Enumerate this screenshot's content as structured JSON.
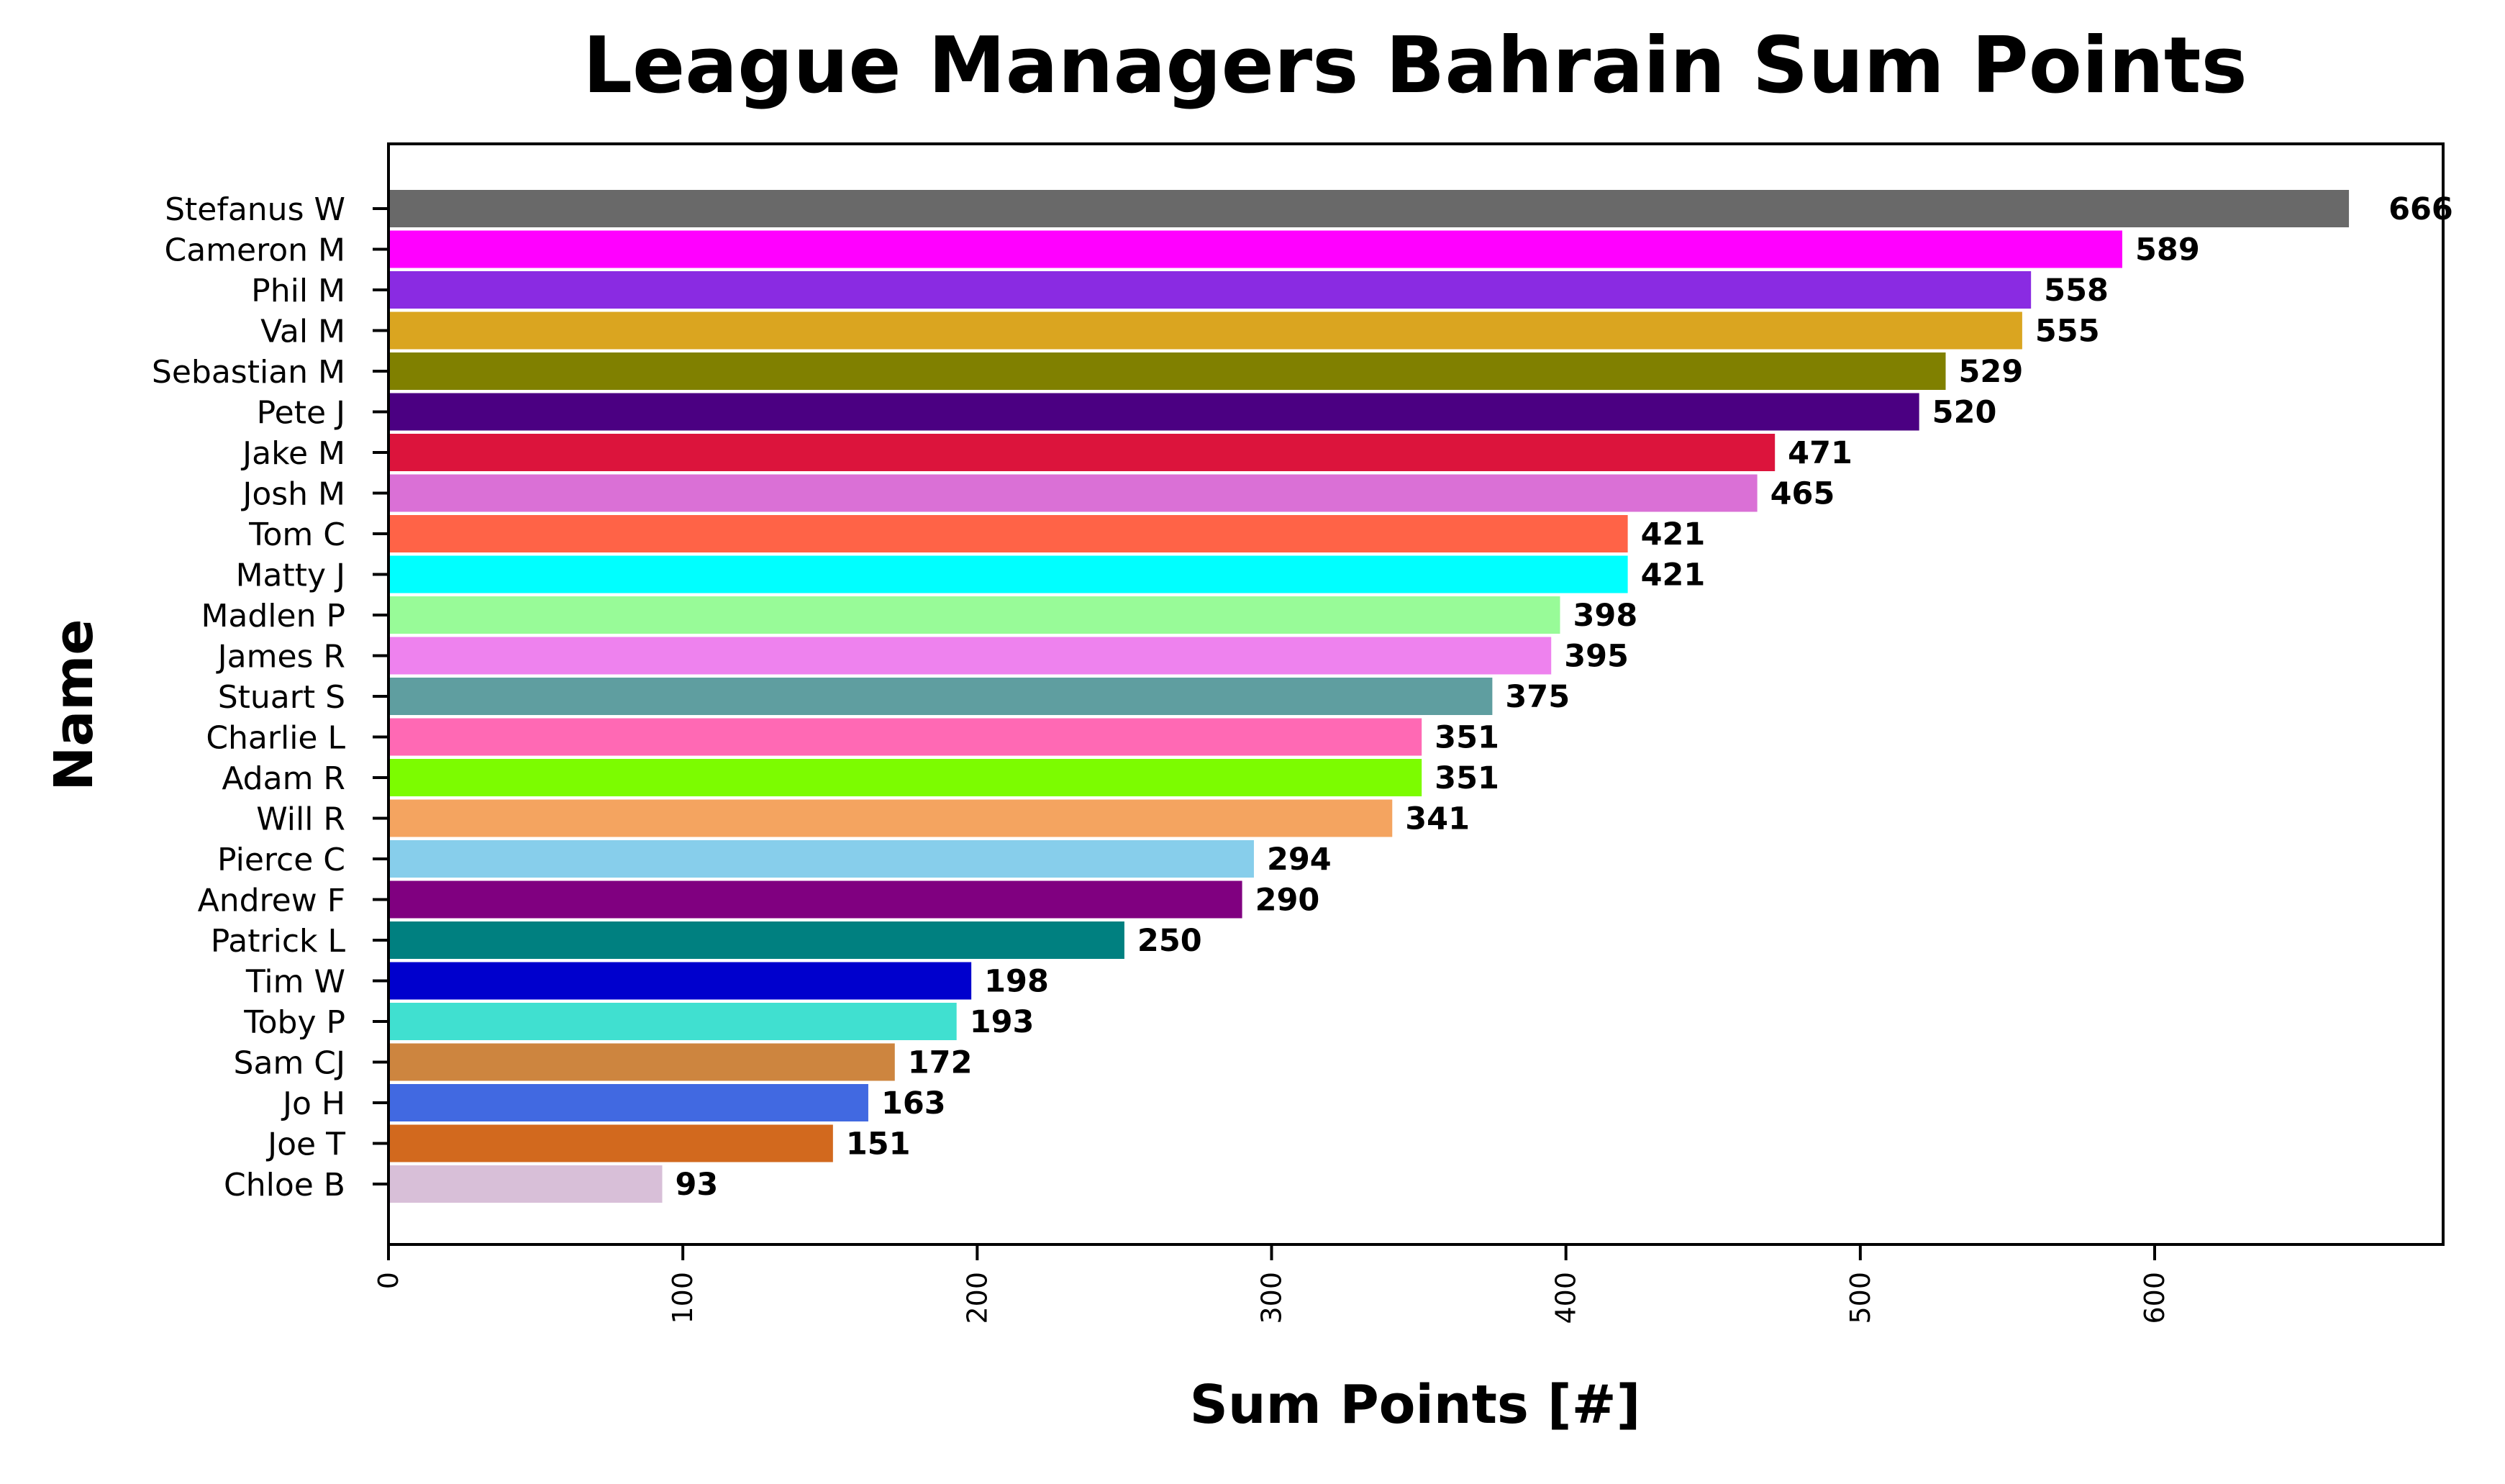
{
  "chart_data": {
    "type": "bar",
    "orientation": "horizontal",
    "title": "League Managers Bahrain Sum Points",
    "xlabel": "Sum Points [#]",
    "ylabel": "Name",
    "xlim": [
      0,
      698
    ],
    "xticks": [
      0,
      100,
      200,
      300,
      400,
      500,
      600
    ],
    "grid": false,
    "legend": "none",
    "categories": [
      "Stefanus W",
      "Cameron M",
      "Phil M",
      "Val M",
      "Sebastian M",
      "Pete J",
      "Jake M",
      "Josh M",
      "Tom C",
      "Matty J",
      "Madlen P",
      "James R",
      "Stuart S",
      "Charlie L",
      "Adam R",
      "Will R",
      "Pierce C",
      "Andrew F",
      "Patrick L",
      "Tim W",
      "Toby P",
      "Sam CJ",
      "Jo H",
      "Joe T",
      "Chloe B"
    ],
    "values": [
      666,
      589,
      558,
      555,
      529,
      520,
      471,
      465,
      421,
      421,
      398,
      395,
      375,
      351,
      351,
      341,
      294,
      290,
      250,
      198,
      193,
      172,
      163,
      151,
      93
    ],
    "colors": [
      "#696969",
      "#ff00ff",
      "#8a2be2",
      "#daa520",
      "#808000",
      "#4b0082",
      "#dc143c",
      "#da70d6",
      "#ff6347",
      "#00ffff",
      "#98fb98",
      "#ee82ee",
      "#5f9ea0",
      "#ff69b4",
      "#7cfc00",
      "#f4a460",
      "#87ceeb",
      "#800080",
      "#008080",
      "#0000cd",
      "#40e0d0",
      "#cd853f",
      "#4169e1",
      "#d2691e",
      "#d8bfd8"
    ]
  }
}
